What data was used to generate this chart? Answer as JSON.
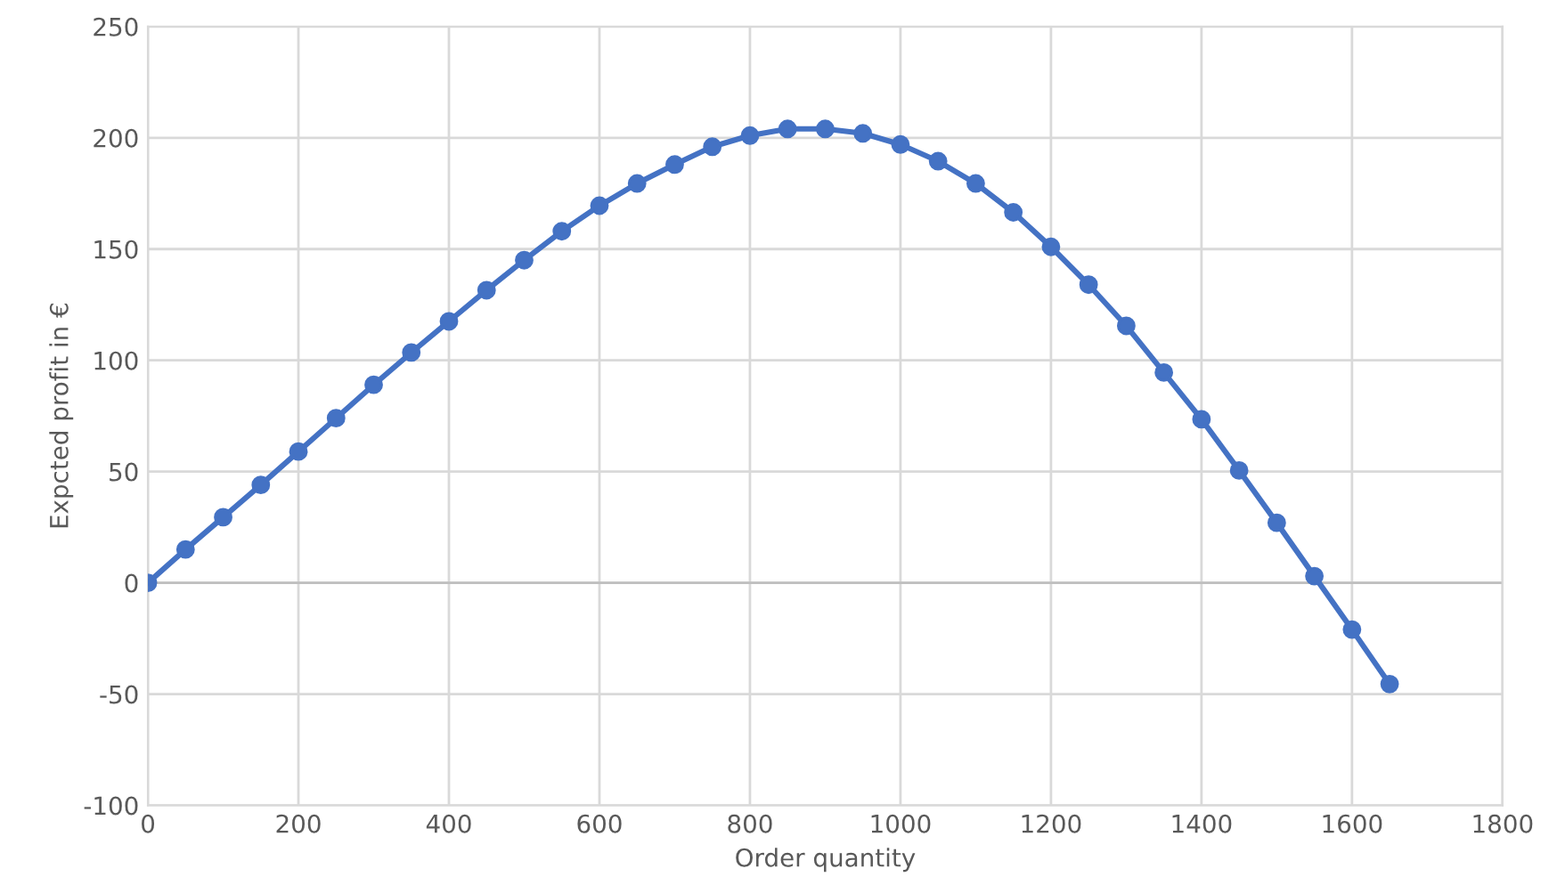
{
  "chart_data": {
    "type": "line",
    "xlabel": "Order quantity",
    "ylabel": "Expcted profit in €",
    "series": [
      {
        "color": "#4472c4",
        "x": [
          0,
          50,
          100,
          150,
          200,
          250,
          300,
          350,
          400,
          450,
          500,
          550,
          600,
          650,
          700,
          750,
          800,
          850,
          900,
          950,
          1000,
          1050,
          1100,
          1150,
          1200,
          1250,
          1300,
          1350,
          1400,
          1450,
          1500,
          1550,
          1600,
          1650
        ],
        "values": [
          0,
          15,
          29.5,
          44,
          59,
          74,
          89,
          103.5,
          117.5,
          131.5,
          145,
          158,
          169.5,
          179.5,
          188,
          196,
          201,
          204,
          204,
          202,
          197,
          189.5,
          179.5,
          166.5,
          151,
          134,
          115.5,
          94.5,
          73.5,
          50.5,
          27,
          3,
          -21,
          -45.5
        ]
      }
    ],
    "xlim": [
      0,
      1800
    ],
    "xticks": [
      0,
      200,
      400,
      600,
      800,
      1000,
      1200,
      1400,
      1600,
      1800
    ],
    "ylim": [
      -100,
      250
    ],
    "yticks": [
      -100,
      -50,
      0,
      50,
      100,
      150,
      200,
      250
    ],
    "grid": true,
    "marker": "circle",
    "line_style": "solid"
  }
}
